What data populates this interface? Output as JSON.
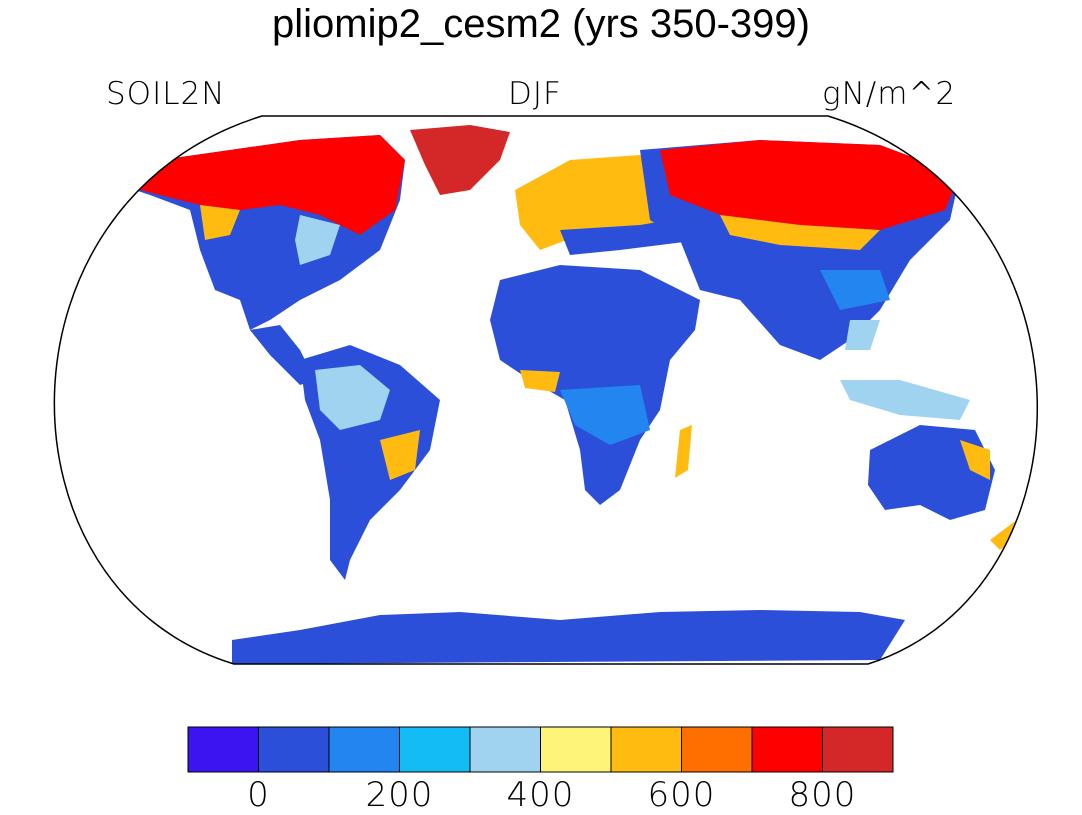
{
  "title": "pliomip2_cesm2 (yrs 350-399)",
  "left_label": "SOIL2N",
  "center_label": "DJF",
  "right_label": "gN/m^2",
  "colorbar": {
    "colors": [
      "#3b14f0",
      "#2c4fd9",
      "#2386f0",
      "#13bcf5",
      "#9fd3f0",
      "#fff47a",
      "#ffbb10",
      "#ff6f00",
      "#ff0000",
      "#d42828"
    ],
    "tick_labels": [
      "0",
      "200",
      "400",
      "600",
      "800"
    ]
  },
  "map": {
    "land_low_color": "#2c4fd9",
    "ocean_color": "#ffffff"
  }
}
